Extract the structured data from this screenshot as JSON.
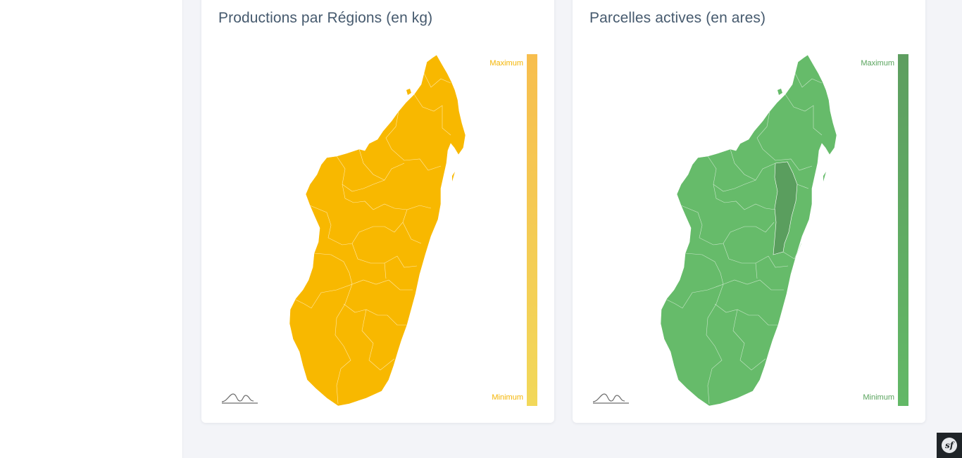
{
  "sidebar": {},
  "cards": [
    {
      "title": "Productions par Régions (en kg)",
      "legend": {
        "max_label": "Maximum",
        "min_label": "Minimum"
      },
      "colors": {
        "region_fill": "#f8b800",
        "legend_top": "#f7be4e",
        "legend_bottom": "#f2d85a",
        "label": "#f4b400"
      },
      "highlighted_region": null
    },
    {
      "title": "Parcelles actives (en ares)",
      "legend": {
        "max_label": "Maximum",
        "min_label": "Minimum"
      },
      "colors": {
        "region_fill": "#66bb6a",
        "highlight_fill": "#5a9e5e",
        "legend_top": "#5e9e60",
        "legend_bottom": "#62b866",
        "label": "#58a35c"
      },
      "highlighted_region": "Alaotra-Mangoro"
    }
  ],
  "icons": {
    "chart_logo": "mountain-logo-icon",
    "framework_badge": "symfony-icon"
  },
  "badge": {
    "glyph": "sf"
  }
}
